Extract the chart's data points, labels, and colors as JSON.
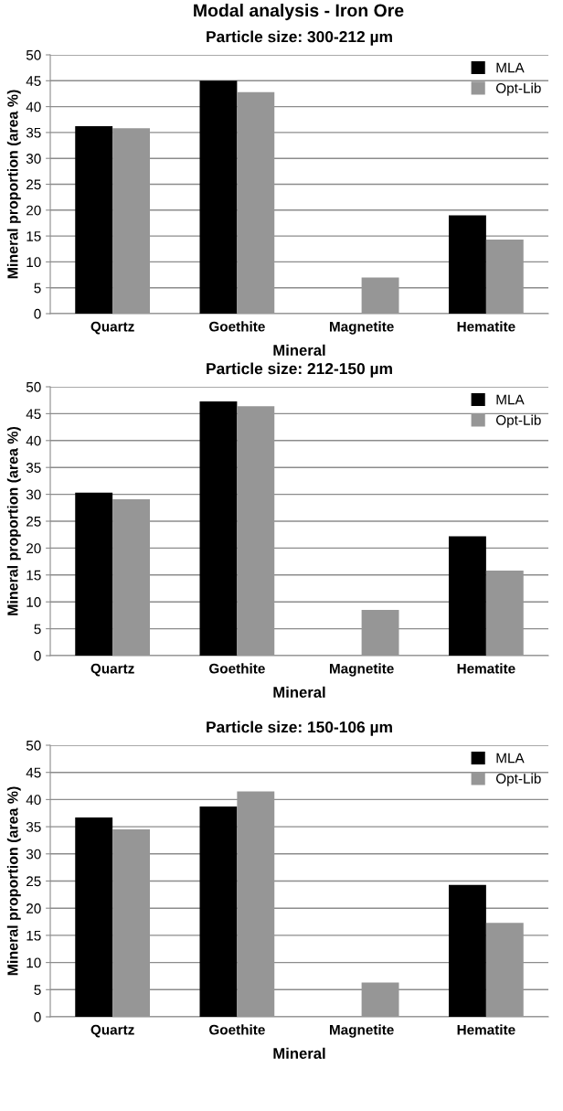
{
  "chart_data": [
    {
      "type": "bar",
      "title": "Modal analysis - Iron Ore",
      "subtitle": "Particle size: 300-212 µm",
      "xlabel": "Mineral",
      "ylabel": "Mineral proportion (area %)",
      "categories": [
        "Quartz",
        "Goethite",
        "Magnetite",
        "Hematite"
      ],
      "series": [
        {
          "name": "MLA",
          "color": "#000000",
          "values": [
            36.2,
            45.0,
            0,
            19.0
          ]
        },
        {
          "name": "Opt-Lib",
          "color": "#969696",
          "values": [
            35.8,
            42.8,
            7.0,
            14.3
          ]
        }
      ],
      "ylim": [
        0,
        50
      ],
      "yticks": [
        0,
        5,
        10,
        15,
        20,
        25,
        30,
        35,
        40,
        45,
        50
      ],
      "grid": "y",
      "legend": "top right"
    },
    {
      "type": "bar",
      "subtitle": "Particle size: 212-150 µm",
      "xlabel": "Mineral",
      "ylabel": "Mineral proportion (area %)",
      "categories": [
        "Quartz",
        "Goethite",
        "Magnetite",
        "Hematite"
      ],
      "series": [
        {
          "name": "MLA",
          "color": "#000000",
          "values": [
            30.3,
            47.3,
            0,
            22.2
          ]
        },
        {
          "name": "Opt-Lib",
          "color": "#969696",
          "values": [
            29.1,
            46.4,
            8.5,
            15.8
          ]
        }
      ],
      "ylim": [
        0,
        50
      ],
      "yticks": [
        0,
        5,
        10,
        15,
        20,
        25,
        30,
        35,
        40,
        45,
        50
      ],
      "grid": "y",
      "legend": "top right"
    },
    {
      "type": "bar",
      "subtitle": "Particle size: 150-106 µm",
      "xlabel": "Mineral",
      "ylabel": "Mineral proportion (area %)",
      "categories": [
        "Quartz",
        "Goethite",
        "Magnetite",
        "Hematite"
      ],
      "series": [
        {
          "name": "MLA",
          "color": "#000000",
          "values": [
            36.7,
            38.7,
            0,
            24.3
          ]
        },
        {
          "name": "Opt-Lib",
          "color": "#969696",
          "values": [
            34.5,
            41.5,
            6.3,
            17.3
          ]
        }
      ],
      "ylim": [
        0,
        50
      ],
      "yticks": [
        0,
        5,
        10,
        15,
        20,
        25,
        30,
        35,
        40,
        45,
        50
      ],
      "grid": "y",
      "legend": "top right"
    }
  ]
}
